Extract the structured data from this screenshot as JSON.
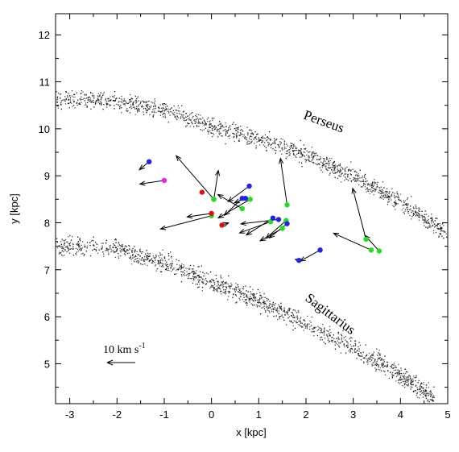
{
  "chart_data": {
    "type": "scatter",
    "xlabel": "x [kpc]",
    "ylabel": "y [kpc]",
    "xlim": [
      -3.3,
      5.0
    ],
    "ylim": [
      4.15,
      12.45
    ],
    "xticks": [
      "-3",
      "-2",
      "-1",
      "0",
      "1",
      "2",
      "3",
      "4",
      "5"
    ],
    "yticks": [
      "5",
      "6",
      "7",
      "8",
      "9",
      "10",
      "11",
      "12"
    ],
    "grid": false,
    "annotations": {
      "perseus": "Perseus",
      "sagittarius": "Sagittarius"
    },
    "legend": {
      "label": "10 km s",
      "exponent": "-1"
    },
    "arms": [
      {
        "name": "Perseus",
        "centerline": [
          [
            -3.3,
            10.65
          ],
          [
            -2.0,
            10.6
          ],
          [
            -1.0,
            10.4
          ],
          [
            0.0,
            10.05
          ],
          [
            1.0,
            9.8
          ],
          [
            2.0,
            9.45
          ],
          [
            3.0,
            9.0
          ],
          [
            4.0,
            8.45
          ],
          [
            5.0,
            7.75
          ]
        ],
        "half_width": 0.18
      },
      {
        "name": "Sagittarius",
        "centerline": [
          [
            -3.3,
            7.55
          ],
          [
            -2.0,
            7.45
          ],
          [
            -1.0,
            7.15
          ],
          [
            0.0,
            6.75
          ],
          [
            1.0,
            6.35
          ],
          [
            2.0,
            5.85
          ],
          [
            3.0,
            5.35
          ],
          [
            4.0,
            4.75
          ],
          [
            4.7,
            4.3
          ]
        ],
        "half_width": 0.2
      }
    ],
    "series": [
      {
        "color": "#22dd22",
        "points": [
          {
            "x": 0.05,
            "y": 8.5,
            "dx": -0.85,
            "dy": 0.98
          },
          {
            "x": 0.05,
            "y": 8.5,
            "dx": 0.1,
            "dy": 0.65
          },
          {
            "x": 0.0,
            "y": 8.15,
            "dx": -1.15,
            "dy": -0.3
          },
          {
            "x": 0.65,
            "y": 8.3,
            "dx": -0.55,
            "dy": 0.32
          },
          {
            "x": 0.82,
            "y": 8.5,
            "dx": -0.72,
            "dy": -0.42
          },
          {
            "x": 1.25,
            "y": 8.02,
            "dx": -0.7,
            "dy": -0.25
          },
          {
            "x": 1.5,
            "y": 7.88,
            "dx": -0.5,
            "dy": -0.28
          },
          {
            "x": 1.58,
            "y": 8.05,
            "dx": -0.45,
            "dy": -0.4
          },
          {
            "x": 1.6,
            "y": 8.38,
            "dx": -0.15,
            "dy": 1.05
          },
          {
            "x": 3.27,
            "y": 7.65,
            "dx": -0.3,
            "dy": 1.15
          },
          {
            "x": 3.38,
            "y": 7.42,
            "dx": -0.85,
            "dy": 0.38
          },
          {
            "x": 3.55,
            "y": 7.4,
            "dx": -0.32,
            "dy": 0.35
          }
        ]
      },
      {
        "color": "#2222ee",
        "points": [
          {
            "x": -1.32,
            "y": 9.3,
            "dx": -0.22,
            "dy": -0.18
          },
          {
            "x": 0.65,
            "y": 8.52,
            "dx": -0.4,
            "dy": -0.38
          },
          {
            "x": 0.72,
            "y": 8.52,
            "dx": -0.25,
            "dy": -0.1
          },
          {
            "x": 0.8,
            "y": 8.78,
            "dx": -0.48,
            "dy": -0.35
          },
          {
            "x": 1.3,
            "y": 8.1,
            "dx": -0.6,
            "dy": -0.38
          },
          {
            "x": 1.42,
            "y": 8.07,
            "dx": -0.85,
            "dy": -0.1
          },
          {
            "x": 1.6,
            "y": 7.98,
            "dx": -0.4,
            "dy": -0.32
          },
          {
            "x": 1.85,
            "y": 7.2,
            "dx": -0.08,
            "dy": 0.02
          },
          {
            "x": 2.3,
            "y": 7.42,
            "dx": -0.45,
            "dy": -0.25
          }
        ]
      },
      {
        "color": "#dd1111",
        "points": [
          {
            "x": -0.2,
            "y": 8.65,
            "dx": 0.0,
            "dy": 0.0
          },
          {
            "x": 0.0,
            "y": 8.2,
            "dx": -0.55,
            "dy": -0.08
          },
          {
            "x": 0.22,
            "y": 7.95,
            "dx": 0.15,
            "dy": 0.05
          }
        ]
      },
      {
        "color": "#ee22ee",
        "points": [
          {
            "x": -1.0,
            "y": 8.9,
            "dx": -0.55,
            "dy": -0.08
          }
        ]
      }
    ]
  }
}
